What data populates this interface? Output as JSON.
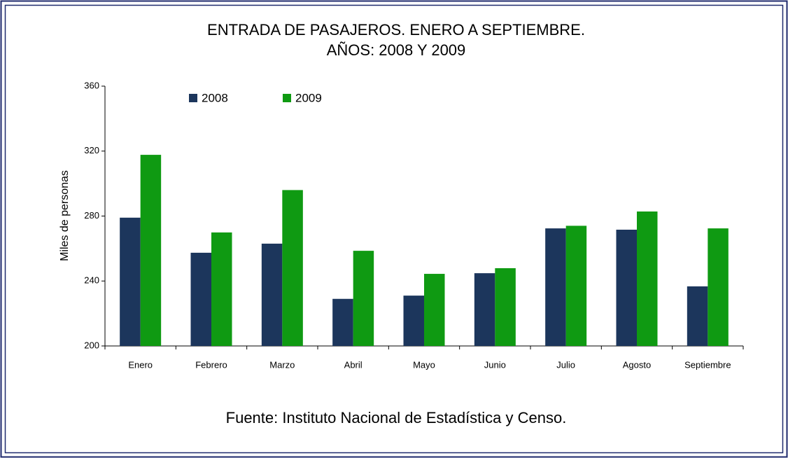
{
  "chart_data": {
    "type": "bar",
    "title": "ENTRADA DE PASAJEROS. ENERO A SEPTIEMBRE.",
    "subtitle": "AÑOS: 2008 Y 2009",
    "y_label": "Miles de personas",
    "source": "Fuente: Instituto Nacional de Estadística y Censo.",
    "categories": [
      "Enero",
      "Febrero",
      "Marzo",
      "Abril",
      "Mayo",
      "Junio",
      "Julio",
      "Agosto",
      "Septiembre"
    ],
    "series": [
      {
        "name": "2008",
        "color": "#1c365c",
        "values": [
          279,
          257.4,
          263,
          229,
          231,
          244.8,
          272.4,
          271.6,
          236.7
        ]
      },
      {
        "name": "2009",
        "color": "#0f9a12",
        "values": [
          317.7,
          269.9,
          296,
          258.6,
          244.4,
          247.9,
          274,
          282.8,
          272.4
        ]
      }
    ],
    "ylim": [
      200,
      360
    ],
    "yticks": [
      200,
      240,
      280,
      320,
      360
    ],
    "grid": false
  }
}
